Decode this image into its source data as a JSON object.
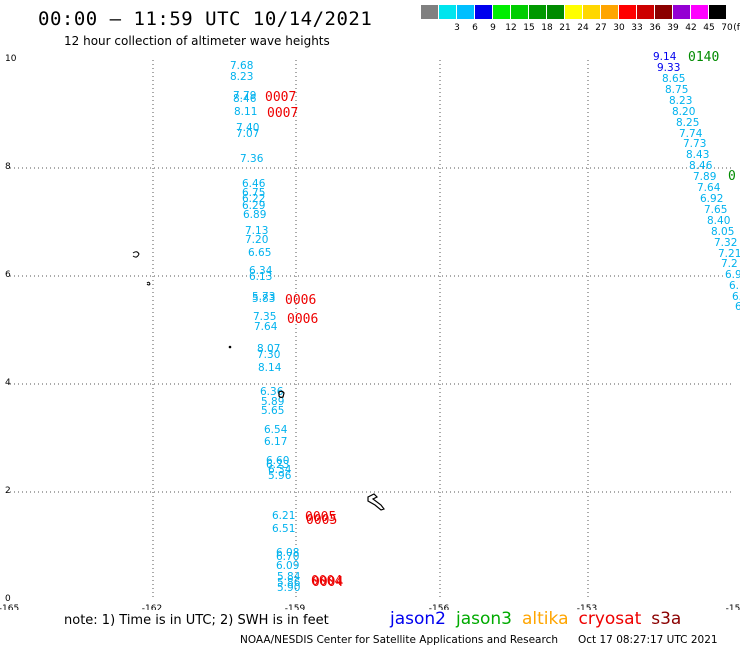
{
  "header": {
    "title": "00:00 – 11:59 UTC 10/14/2021",
    "subtitle": "12 hour collection of altimeter wave heights"
  },
  "color_scale": {
    "unit": "(ft)",
    "swatches": [
      {
        "color": "#808080",
        "label": ""
      },
      {
        "color": "#00e5ee",
        "label": "3"
      },
      {
        "color": "#00bfff",
        "label": "6"
      },
      {
        "color": "#0000ee",
        "label": "9"
      },
      {
        "color": "#00ee00",
        "label": "12"
      },
      {
        "color": "#00cd00",
        "label": "15"
      },
      {
        "color": "#009900",
        "label": "18"
      },
      {
        "color": "#008b00",
        "label": "21"
      },
      {
        "color": "#ffff00",
        "label": "24"
      },
      {
        "color": "#ffd700",
        "label": "27"
      },
      {
        "color": "#ffa500",
        "label": "30"
      },
      {
        "color": "#ff0000",
        "label": "33"
      },
      {
        "color": "#cd0000",
        "label": "36"
      },
      {
        "color": "#8b0000",
        "label": "39"
      },
      {
        "color": "#9400d3",
        "label": "42"
      },
      {
        "color": "#ff00ff",
        "label": "45"
      },
      {
        "color": "#000000",
        "label": "70"
      }
    ]
  },
  "axes": {
    "lon_ticks": [
      "-165",
      "-162",
      "-159",
      "-156",
      "-153",
      "-15"
    ],
    "lat_ticks": [
      "0",
      "2",
      "4",
      "6",
      "8",
      "10"
    ]
  },
  "track_a": {
    "color": "#00b2ee",
    "values": [
      "7.68",
      "8.23",
      "7.79",
      "8.46",
      "8.11",
      "7.40",
      "7.07",
      "7.36",
      "6.46",
      "6.75",
      "6.22",
      "6.29",
      "6.89",
      "7.13",
      "7.20",
      "6.65",
      "6.34",
      "6.13",
      "5.73",
      "5.83",
      "7.35",
      "7.64",
      "8.07",
      "7.30",
      "8.14",
      "6.36",
      "5.89",
      "5.65",
      "6.54",
      "6.17",
      "6.60",
      "6.23",
      "6.34",
      "5.96",
      "6.21",
      "6.51",
      "6.08",
      "6.70",
      "6.09",
      "5.84",
      "5.86",
      "5.90"
    ]
  },
  "track_b": {
    "color": "#00b2ee",
    "values": [
      "8.65",
      "8.75",
      "8.23",
      "8.20",
      "8.25",
      "7.74",
      "7.73",
      "8.43",
      "8.46",
      "7.89",
      "7.64",
      "6.92",
      "7.65",
      "8.40",
      "8.05",
      "7.32",
      "7.21",
      "7.2",
      "6.9",
      "6.",
      "6.",
      "6"
    ]
  },
  "track_b_top": [
    {
      "text": "9.14",
      "color": "#0000ee"
    },
    {
      "text": "9.33",
      "color": "#0000ee"
    }
  ],
  "time_labels": [
    {
      "text": "0007",
      "color": "#ee0000"
    },
    {
      "text": "0007",
      "color": "#ee0000"
    },
    {
      "text": "0006",
      "color": "#ee0000"
    },
    {
      "text": "0006",
      "color": "#ee0000"
    },
    {
      "text": "0005",
      "color": "#ee0000"
    },
    {
      "text": "0005",
      "color": "#ee0000"
    },
    {
      "text": "0004",
      "color": "#ee0000"
    },
    {
      "text": "0004",
      "color": "#ee0000"
    },
    {
      "text": "0140",
      "color": "#008b00"
    },
    {
      "text": "0",
      "color": "#008b00"
    }
  ],
  "note": "note:  1) Time is in UTC;  2) SWH is in feet",
  "satellites": [
    {
      "name": "jason2",
      "color": "#0000ee"
    },
    {
      "name": "jason3",
      "color": "#00aa00"
    },
    {
      "name": "altika",
      "color": "#ffa500"
    },
    {
      "name": "cryosat",
      "color": "#ee0000"
    },
    {
      "name": "s3a",
      "color": "#8b0000"
    }
  ],
  "footer": {
    "org": "NOAA/NESDIS Center for Satellite Applications and Research",
    "timestamp": "Oct 17 08:27:17 UTC 2021"
  }
}
